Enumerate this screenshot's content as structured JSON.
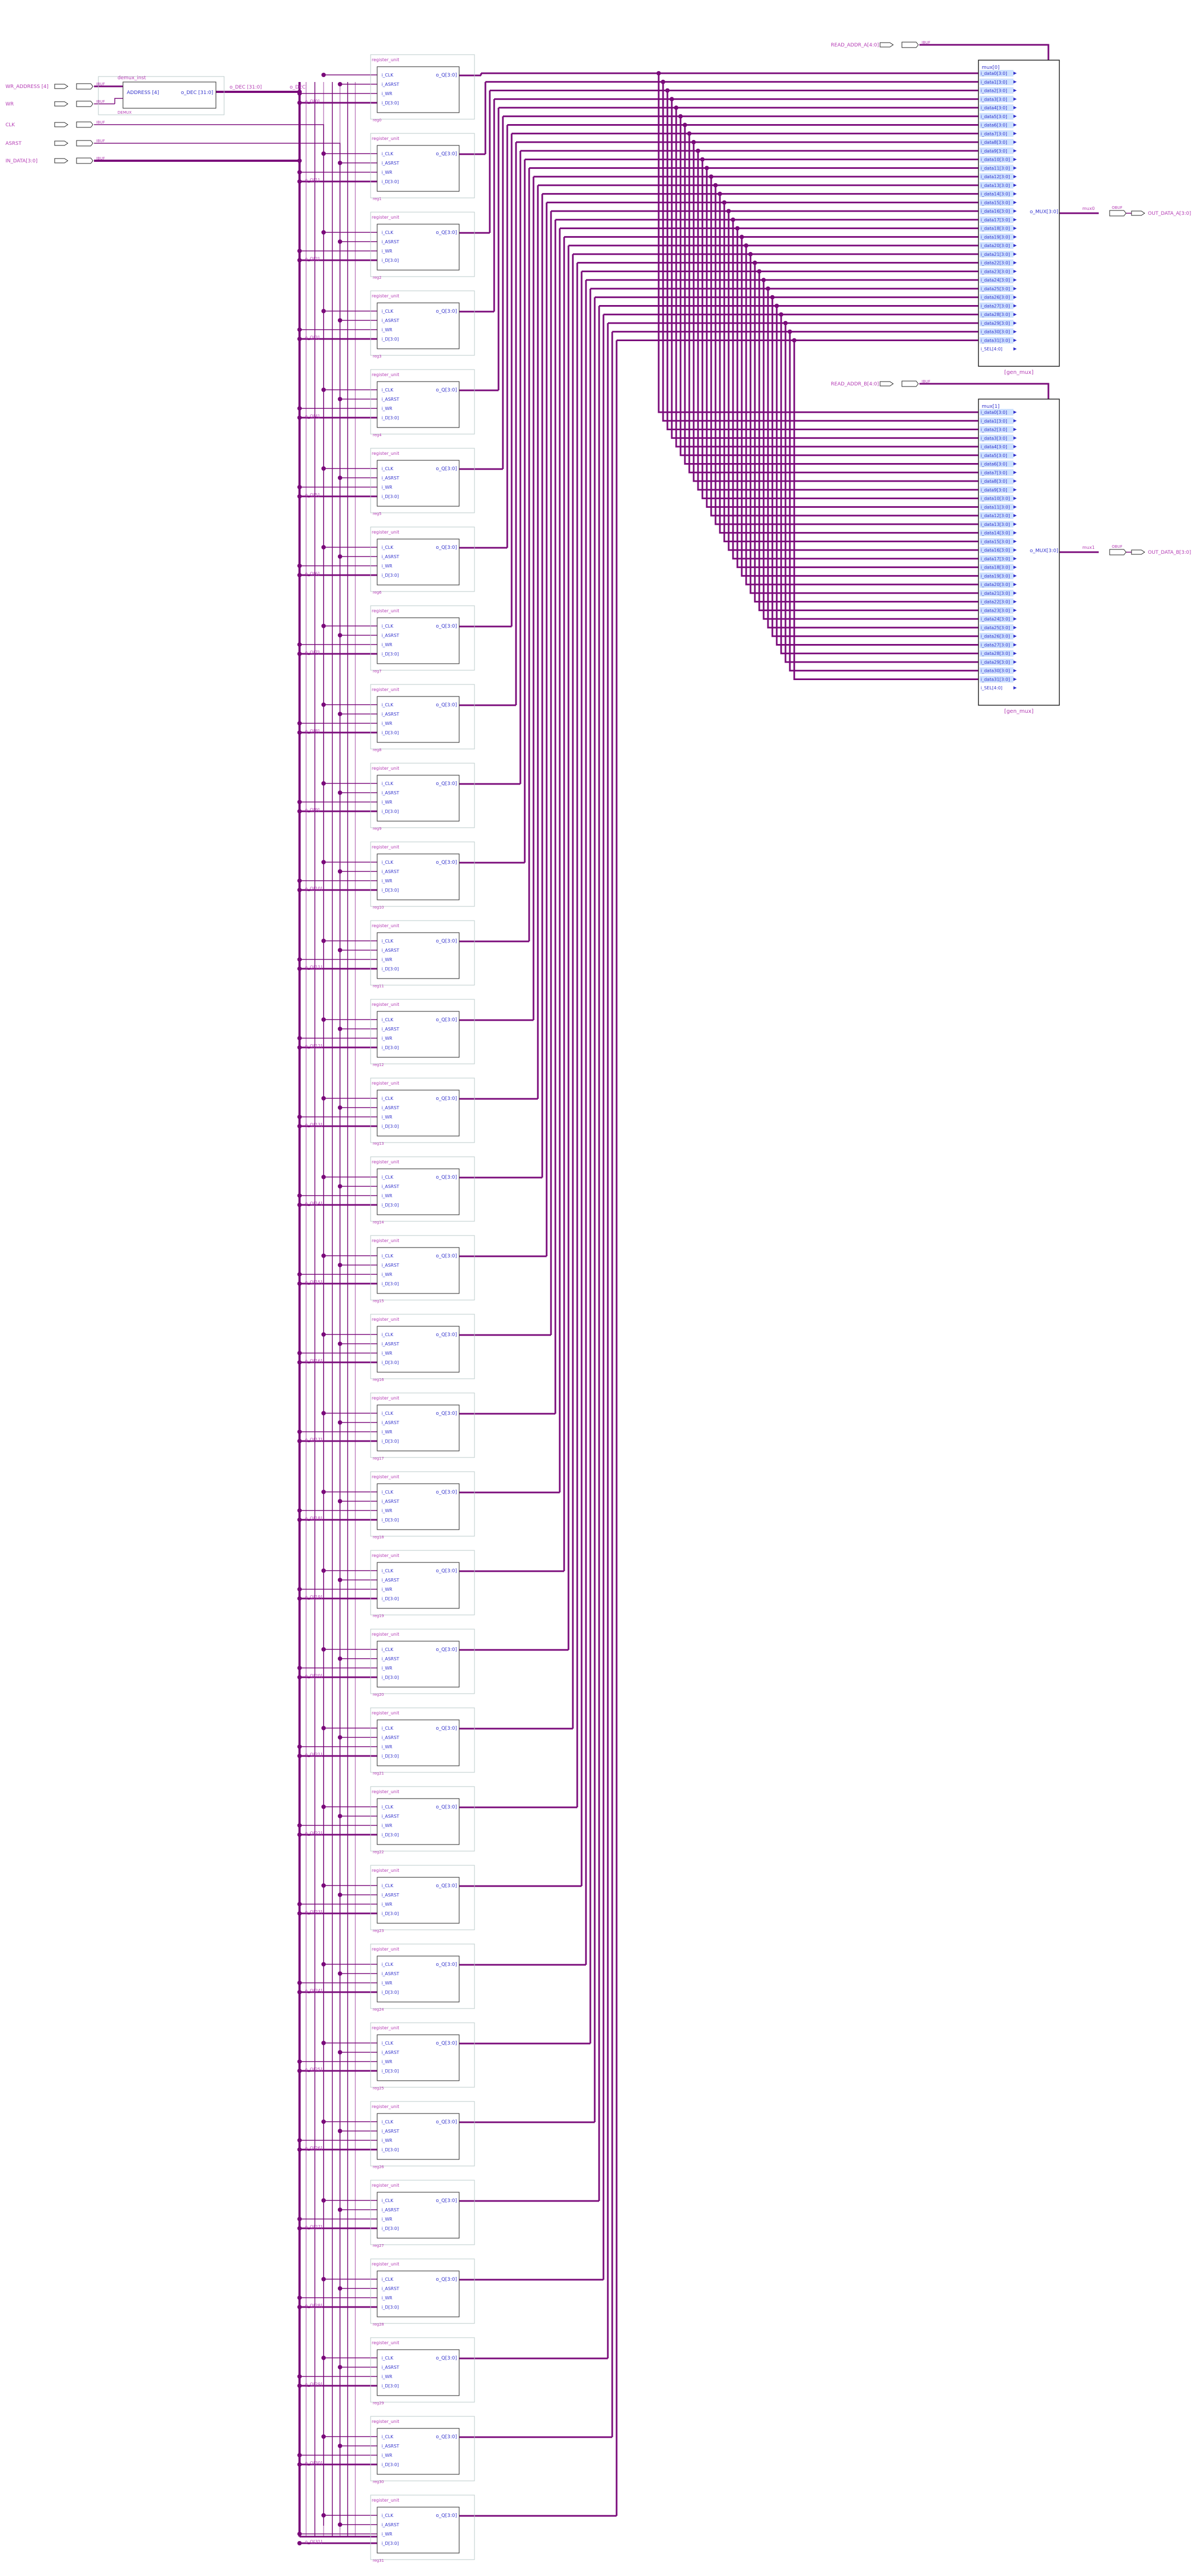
{
  "inputs": {
    "wr_address": "WR_ADDRESS [4]",
    "wr": "WR",
    "clk": "CLK",
    "asrst": "ASRST",
    "in_data": "IN_DATA[3:0]",
    "read_addr_a": "READ_ADDR_A[4:0]",
    "read_addr_b": "READ_ADDR_B[4:0]",
    "ibuf": "IBUF"
  },
  "outputs": {
    "out_a": "OUT_DATA_A[3:0]",
    "out_b": "OUT_DATA_B[3:0]",
    "obuf": "OBUF"
  },
  "demux": {
    "title": "demux_inst",
    "port_in": "ADDRESS [4]",
    "port_out": "o_DEC [31:0]",
    "footer": "DEMUX",
    "bus_label": "o_DEC"
  },
  "register": {
    "title": "register_unit",
    "ports": [
      "i_CLK",
      "i_ASRST",
      "i_WR",
      "i_D[3:0]"
    ],
    "out_port": "o_Q[3:0]"
  },
  "registers": [
    {
      "inst": "reg0",
      "net": "o_Q[0]"
    },
    {
      "inst": "reg1",
      "net": "o_Q[1]"
    },
    {
      "inst": "reg2",
      "net": "o_Q[2]"
    },
    {
      "inst": "reg3",
      "net": "o_Q[3]"
    },
    {
      "inst": "reg4",
      "net": "o_Q[4]"
    },
    {
      "inst": "reg5",
      "net": "o_Q[5]"
    },
    {
      "inst": "reg6",
      "net": "o_Q[6]"
    },
    {
      "inst": "reg7",
      "net": "o_Q[7]"
    },
    {
      "inst": "reg8",
      "net": "o_Q[8]"
    },
    {
      "inst": "reg9",
      "net": "o_Q[9]"
    },
    {
      "inst": "reg10",
      "net": "o_Q[10]"
    },
    {
      "inst": "reg11",
      "net": "o_Q[11]"
    },
    {
      "inst": "reg12",
      "net": "o_Q[12]"
    },
    {
      "inst": "reg13",
      "net": "o_Q[13]"
    },
    {
      "inst": "reg14",
      "net": "o_Q[14]"
    },
    {
      "inst": "reg15",
      "net": "o_Q[15]"
    },
    {
      "inst": "reg16",
      "net": "o_Q[16]"
    },
    {
      "inst": "reg17",
      "net": "o_Q[17]"
    },
    {
      "inst": "reg18",
      "net": "o_Q[18]"
    },
    {
      "inst": "reg19",
      "net": "o_Q[19]"
    },
    {
      "inst": "reg20",
      "net": "o_Q[20]"
    },
    {
      "inst": "reg21",
      "net": "o_Q[21]"
    },
    {
      "inst": "reg22",
      "net": "o_Q[22]"
    },
    {
      "inst": "reg23",
      "net": "o_Q[23]"
    },
    {
      "inst": "reg24",
      "net": "o_Q[24]"
    },
    {
      "inst": "reg25",
      "net": "o_Q[25]"
    },
    {
      "inst": "reg26",
      "net": "o_Q[26]"
    },
    {
      "inst": "reg27",
      "net": "o_Q[27]"
    },
    {
      "inst": "reg28",
      "net": "o_Q[28]"
    },
    {
      "inst": "reg29",
      "net": "o_Q[29]"
    },
    {
      "inst": "reg30",
      "net": "o_Q[30]"
    },
    {
      "inst": "reg31",
      "net": "o_Q[31]"
    }
  ],
  "mux_a": {
    "title": "mux[0]",
    "footer": "[gen_mux]",
    "out_port": "o_MUX[3:0]",
    "net": "mux0"
  },
  "mux_b": {
    "title": "mux[1]",
    "footer": "[gen_mux]",
    "out_port": "o_MUX[3:0]",
    "net": "mux1"
  },
  "mux_inputs": [
    "i_data0[3:0]",
    "i_data1[3:0]",
    "i_data2[3:0]",
    "i_data3[3:0]",
    "i_data4[3:0]",
    "i_data5[3:0]",
    "i_data6[3:0]",
    "i_data7[3:0]",
    "i_data8[3:0]",
    "i_data9[3:0]",
    "i_data10[3:0]",
    "i_data11[3:0]",
    "i_data12[3:0]",
    "i_data13[3:0]",
    "i_data14[3:0]",
    "i_data15[3:0]",
    "i_data16[3:0]",
    "i_data17[3:0]",
    "i_data18[3:0]",
    "i_data19[3:0]",
    "i_data20[3:0]",
    "i_data21[3:0]",
    "i_data22[3:0]",
    "i_data23[3:0]",
    "i_data24[3:0]",
    "i_data25[3:0]",
    "i_data26[3:0]",
    "i_data27[3:0]",
    "i_data28[3:0]",
    "i_data29[3:0]",
    "i_data30[3:0]",
    "i_data31[3:0]",
    "i_SEL[4:0]"
  ],
  "colors": {
    "wire": "#7a0a7a",
    "text": "#3333cc",
    "label": "#b43cb4",
    "box": "#222222",
    "frame": "#b8c8c8",
    "highlight": "#cce0ff"
  }
}
